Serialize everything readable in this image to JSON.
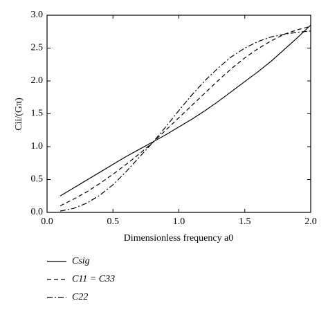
{
  "chart_data": {
    "type": "line",
    "x_label": "Dimensionless frequency a0",
    "y_label": "Cii/(Gπ)",
    "x": [
      0.1,
      0.2,
      0.3,
      0.4,
      0.5,
      0.6,
      0.7,
      0.8,
      0.9,
      1.0,
      1.1,
      1.2,
      1.3,
      1.4,
      1.5,
      1.6,
      1.7,
      1.8,
      1.9,
      2.0
    ],
    "series": [
      {
        "name": "Csig",
        "color": "#000000",
        "dash": "solid",
        "values": [
          0.25,
          0.37,
          0.49,
          0.61,
          0.73,
          0.85,
          0.96,
          1.07,
          1.18,
          1.3,
          1.42,
          1.55,
          1.69,
          1.84,
          1.99,
          2.14,
          2.3,
          2.48,
          2.66,
          2.85
        ]
      },
      {
        "name": "C11 = C33",
        "color": "#000000",
        "dash": "dashed",
        "values": [
          0.1,
          0.2,
          0.31,
          0.44,
          0.58,
          0.73,
          0.89,
          1.06,
          1.25,
          1.44,
          1.63,
          1.82,
          2.01,
          2.19,
          2.35,
          2.49,
          2.61,
          2.71,
          2.78,
          2.83
        ]
      },
      {
        "name": "C22",
        "color": "#000000",
        "dash": "dashdot",
        "values": [
          0.02,
          0.06,
          0.14,
          0.26,
          0.42,
          0.62,
          0.84,
          1.06,
          1.3,
          1.55,
          1.79,
          2.01,
          2.2,
          2.37,
          2.5,
          2.6,
          2.67,
          2.71,
          2.74,
          2.76
        ]
      }
    ],
    "xlim": [
      0,
      2
    ],
    "ylim": [
      0,
      3
    ],
    "xticks": [
      {
        "value": 0,
        "label": "0.0"
      },
      0.5,
      {
        "value": 1,
        "label": "1.0"
      },
      1.5,
      {
        "value": 2,
        "label": "2.0"
      }
    ],
    "yticks": [
      {
        "value": 0,
        "label": "0.0"
      },
      0.5,
      {
        "value": 1,
        "label": "1.0"
      },
      1.5,
      {
        "value": 2,
        "label": "2.0"
      },
      2.5,
      {
        "value": 3,
        "label": "3.0"
      }
    ],
    "legend": "below"
  }
}
